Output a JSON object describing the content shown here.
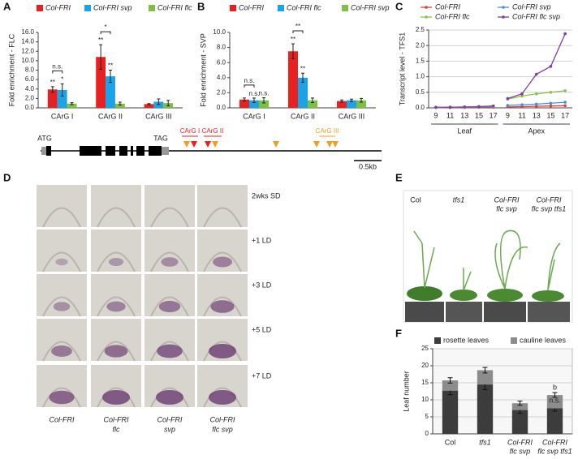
{
  "chart_data": [
    {
      "type": "grouped-bar",
      "panel": "A",
      "ylabel": "Fold enrichment - FLC",
      "categories": [
        "CArG I",
        "CArG II",
        "CArG III"
      ],
      "series": [
        {
          "name": "Col-FRI",
          "color": "#e8201f",
          "values": [
            3.9,
            10.8,
            0.8
          ],
          "errors": [
            0.6,
            2.6,
            0.1
          ]
        },
        {
          "name": "Col-FRI svp",
          "color": "#1ba3e8",
          "values": [
            3.8,
            6.7,
            1.3
          ],
          "errors": [
            1.3,
            1.3,
            0.6
          ]
        },
        {
          "name": "Col-FRI flc",
          "color": "#7dc142",
          "values": [
            0.9,
            0.9,
            1.0
          ],
          "errors": [
            0.2,
            0.3,
            0.6
          ]
        }
      ],
      "ylim": [
        0,
        16
      ],
      "yticks": [
        {
          "value": 0,
          "label": "0.0"
        },
        {
          "value": 2,
          "label": "2.0"
        },
        {
          "value": 4,
          "label": "4.0"
        },
        {
          "value": 6,
          "label": "6.0"
        },
        {
          "value": 8,
          "label": "8.0"
        },
        {
          "value": 10,
          "label": "10.0"
        },
        {
          "value": 12,
          "label": "12.0"
        },
        {
          "value": 14,
          "label": "14.0"
        },
        {
          "value": 16,
          "label": "16.0"
        }
      ],
      "grid": false,
      "annotations": [
        {
          "text": "n.s.",
          "category": "CArG I",
          "between": [
            "Col-FRI",
            "Col-FRI svp"
          ]
        },
        {
          "text": "**",
          "category": "CArG I",
          "series": "Col-FRI"
        },
        {
          "text": "*",
          "category": "CArG I",
          "series": "Col-FRI svp"
        },
        {
          "text": "*",
          "category": "CArG II",
          "between": [
            "Col-FRI",
            "Col-FRI svp"
          ]
        },
        {
          "text": "**",
          "category": "CArG II",
          "series": "Col-FRI"
        },
        {
          "text": "**",
          "category": "CArG II",
          "series": "Col-FRI svp"
        }
      ]
    },
    {
      "type": "grouped-bar",
      "panel": "B",
      "ylabel": "Fold enrichment - SVP",
      "categories": [
        "CArG I",
        "CArG II",
        "CArG III"
      ],
      "series": [
        {
          "name": "Col-FRI",
          "color": "#e8201f",
          "values": [
            1.1,
            7.5,
            0.9
          ],
          "errors": [
            0.2,
            1.0,
            0.15
          ]
        },
        {
          "name": "Col-FRI flc",
          "color": "#1ba3e8",
          "values": [
            1.0,
            4.0,
            1.0
          ],
          "errors": [
            0.3,
            0.6,
            0.15
          ]
        },
        {
          "name": "Col-FRI svp",
          "color": "#7dc142",
          "values": [
            1.0,
            1.0,
            1.0
          ],
          "errors": [
            0.35,
            0.3,
            0.25
          ]
        }
      ],
      "ylim": [
        0,
        10
      ],
      "yticks": [
        {
          "value": 0,
          "label": "0.0"
        },
        {
          "value": 2,
          "label": "2.0"
        },
        {
          "value": 4,
          "label": "4.0"
        },
        {
          "value": 6,
          "label": "6.0"
        },
        {
          "value": 8,
          "label": "8.0"
        },
        {
          "value": 10,
          "label": "10.0"
        }
      ],
      "grid": false,
      "annotations": [
        {
          "text": "n.s.",
          "category": "CArG I",
          "between": [
            "Col-FRI",
            "Col-FRI flc"
          ]
        },
        {
          "text": "n.s.",
          "category": "CArG I",
          "series": "Col-FRI flc"
        },
        {
          "text": "n.s.",
          "category": "CArG I",
          "series": "Col-FRI svp"
        },
        {
          "text": "**",
          "category": "CArG II",
          "between": [
            "Col-FRI",
            "Col-FRI flc"
          ]
        },
        {
          "text": "**",
          "category": "CArG II",
          "series": "Col-FRI"
        },
        {
          "text": "**",
          "category": "CArG II",
          "series": "Col-FRI flc"
        }
      ]
    },
    {
      "type": "line",
      "panel": "C",
      "ylabel": "Transcript level - TFS1",
      "groups": [
        {
          "name": "Leaf",
          "categories": [
            9,
            11,
            13,
            15,
            17
          ]
        },
        {
          "name": "Apex",
          "categories": [
            9,
            11,
            13,
            15,
            17
          ]
        }
      ],
      "series": [
        {
          "name": "Col-FRI",
          "color": "#e0403a",
          "values": [
            0.01,
            0.01,
            0.01,
            0.02,
            0.02,
            0.03,
            0.04,
            0.05,
            0.06,
            0.07
          ]
        },
        {
          "name": "Col-FRI svp",
          "color": "#4a8fd6",
          "values": [
            0.01,
            0.02,
            0.02,
            0.03,
            0.04,
            0.08,
            0.1,
            0.12,
            0.15,
            0.18
          ]
        },
        {
          "name": "Col-FRI flc",
          "color": "#8bc34a",
          "values": [
            0.01,
            0.02,
            0.03,
            0.04,
            0.05,
            0.28,
            0.38,
            0.45,
            0.5,
            0.55
          ]
        },
        {
          "name": "Col-FRI flc svp",
          "color": "#7b3fa0",
          "values": [
            0.02,
            0.02,
            0.03,
            0.04,
            0.06,
            0.3,
            0.45,
            1.08,
            1.33,
            2.38
          ]
        }
      ],
      "ylim": [
        0,
        2.5
      ],
      "yticks": [
        {
          "value": 0,
          "label": "0.0"
        },
        {
          "value": 0.5,
          "label": "0.5"
        },
        {
          "value": 1,
          "label": "1.0"
        },
        {
          "value": 1.5,
          "label": "1.5"
        },
        {
          "value": 2,
          "label": "2.0"
        },
        {
          "value": 2.5,
          "label": "2.5"
        }
      ],
      "grid": true
    },
    {
      "type": "stacked-bar",
      "panel": "F",
      "ylabel": "Leaf number",
      "categories": [
        [
          "Col"
        ],
        [
          "tfs1"
        ],
        [
          "Col-FRI",
          "flc svp"
        ],
        [
          "Col-FRI",
          "flc svp tfs1"
        ]
      ],
      "series": [
        {
          "name": "rosette leaves",
          "color": "#3c3c3c",
          "values": [
            12.7,
            14.5,
            7.0,
            7.5
          ],
          "errors": [
            1.2,
            1.5,
            1.0,
            0.8
          ]
        },
        {
          "name": "cauline leaves",
          "color": "#8c8c8c",
          "values": [
            3.0,
            4.2,
            2.0,
            3.9
          ],
          "errors": [
            0.8,
            0.8,
            0.6,
            0.7
          ]
        }
      ],
      "ylim": [
        0,
        25
      ],
      "yticks": [
        0,
        5,
        10,
        15,
        20,
        25
      ],
      "grid": true,
      "annotations": [
        {
          "text": "n.s.",
          "category": 3,
          "series": "rosette leaves"
        },
        {
          "text": "b",
          "category": 3,
          "series": "cauline leaves"
        }
      ]
    }
  ],
  "gene_model": {
    "start_codon": "ATG",
    "stop_codon": "TAG",
    "sites": [
      "CArG I",
      "CArG II",
      "CArG III"
    ],
    "scale": "0.5kb"
  },
  "in_situ": {
    "panel": "D",
    "rows": [
      "2wks SD",
      "+1 LD",
      "+3 LD",
      "+5 LD",
      "+7 LD"
    ],
    "columns": [
      [
        "Col-FRI"
      ],
      [
        "Col-FRI",
        "flc"
      ],
      [
        "Col-FRI",
        "svp"
      ],
      [
        "Col-FRI",
        "flc svp"
      ]
    ]
  },
  "plants": {
    "panel": "E",
    "labels": [
      [
        "Col"
      ],
      [
        "tfs1"
      ],
      [
        "Col-FRI",
        "flc svp"
      ],
      [
        "Col-FRI",
        "flc svp tfs1"
      ]
    ]
  }
}
